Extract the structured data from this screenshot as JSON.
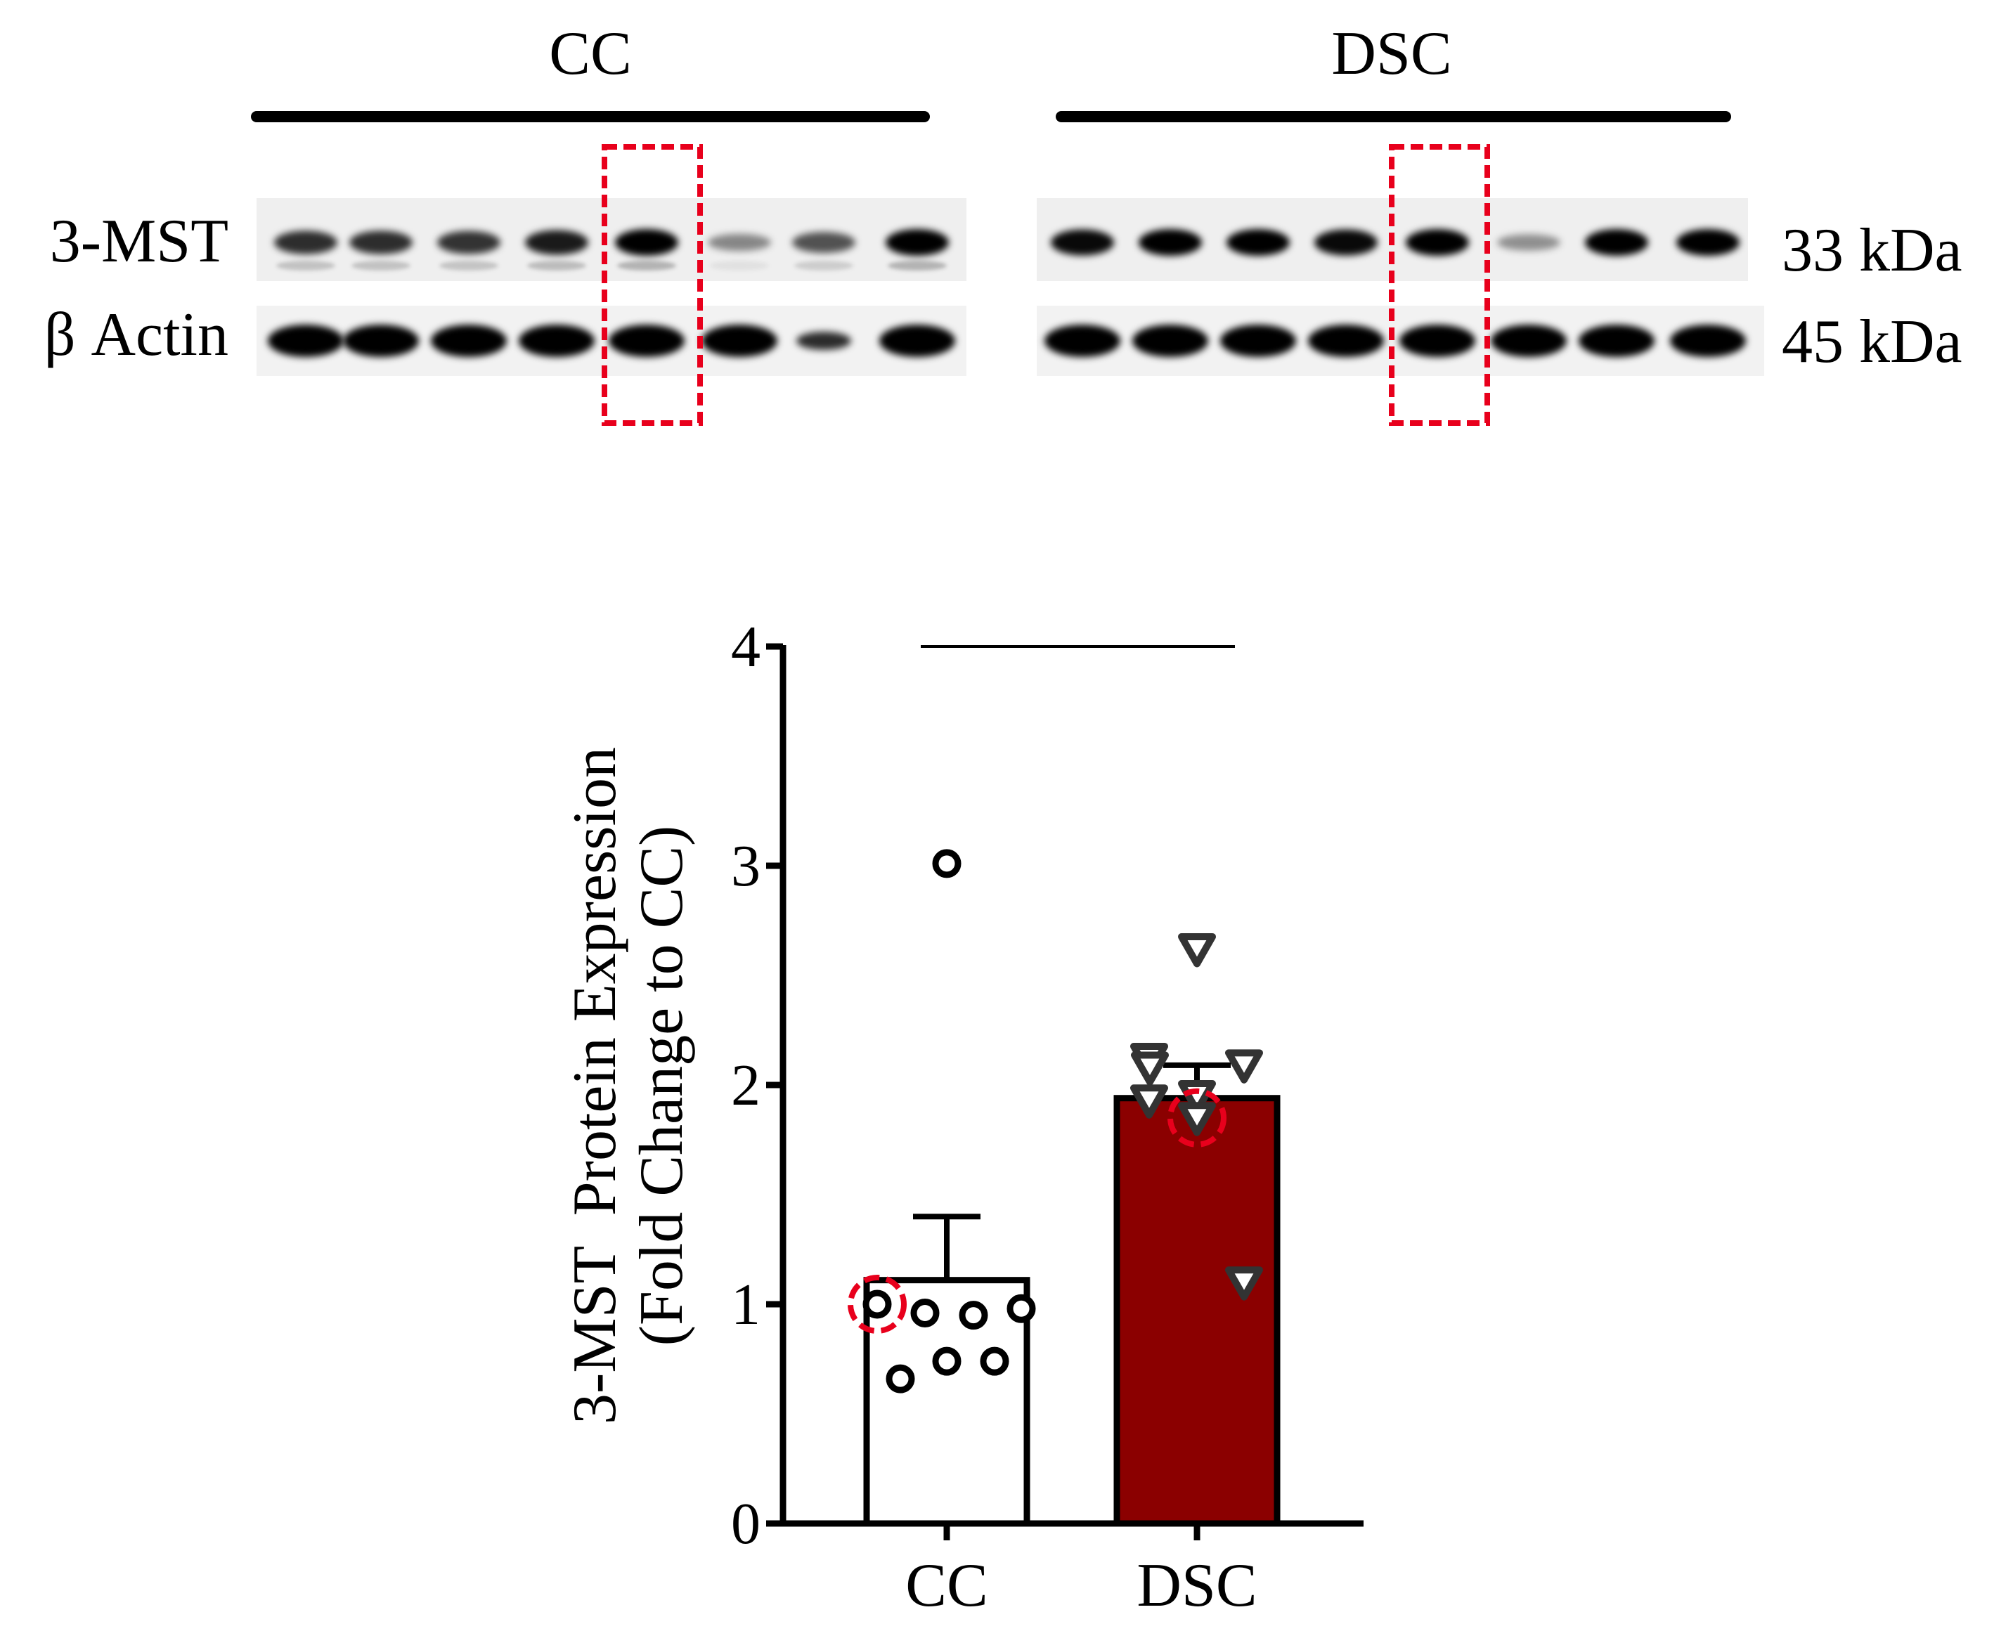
{
  "blot": {
    "group_labels": [
      "CC",
      "DSC"
    ],
    "row_labels": [
      "3-MST",
      "β Actin"
    ],
    "size_labels": [
      "33 kDa",
      "45 kDa"
    ],
    "band_intensity": {
      "mst": [
        0.75,
        0.75,
        0.72,
        0.85,
        1.0,
        0.25,
        0.55,
        1.0,
        0.95,
        1.0,
        1.0,
        0.95,
        1.0,
        0.2,
        1.0,
        1.0
      ],
      "actin": [
        1.0,
        1.0,
        1.0,
        1.0,
        1.0,
        1.0,
        0.8,
        1.0,
        1.0,
        1.0,
        1.0,
        1.0,
        1.0,
        1.0,
        1.0,
        1.0
      ]
    },
    "highlight_lanes": [
      5,
      13
    ],
    "highlight_color": "#e8001c"
  },
  "chart_data": {
    "type": "bar",
    "categories": [
      "CC",
      "DSC"
    ],
    "values": [
      1.11,
      1.94
    ],
    "error_upper": [
      1.4,
      2.09
    ],
    "ylabel_line1": "3-MST  Protein Expression",
    "ylabel_line2": "(Fold Change to CC)",
    "ylim": [
      0,
      4
    ],
    "yticks": [
      "0",
      "1",
      "2",
      "3",
      "4"
    ],
    "bar_colors": [
      "#ffffff",
      "#8b0000"
    ],
    "significance_bar": true,
    "points": {
      "CC": {
        "marker": "circle",
        "values": [
          1.0,
          0.96,
          0.95,
          0.98,
          3.01,
          0.66,
          0.74,
          0.74
        ],
        "highlight_index": 0
      },
      "DSC": {
        "marker": "triangle-down",
        "values": [
          2.12,
          1.95,
          1.1,
          2.62,
          2.08,
          1.85,
          2.09,
          1.93
        ],
        "highlight_index": 5
      }
    },
    "highlight_color": "#e8001c"
  }
}
